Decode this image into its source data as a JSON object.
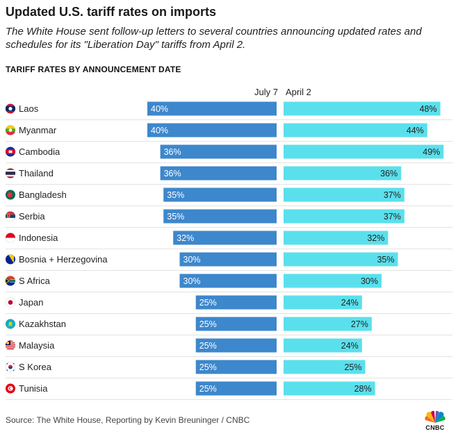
{
  "header": {
    "title": "Updated U.S. tariff rates on imports",
    "subtitle": "The White House sent follow-up letters to several countries announcing updated rates and schedules for its \"Liberation Day\" tariffs from April 2.",
    "section_label": "TARIFF RATES BY ANNOUNCEMENT DATE"
  },
  "footer": {
    "source": "Source: The White House, Reporting by Kevin Breuninger / CNBC",
    "logo": "CNBC"
  },
  "colors": {
    "july7_bar": "#3d87cc",
    "april2_bar": "#5ae0ec",
    "row_divider": "#e2e2e2"
  },
  "chart_data": {
    "type": "bar",
    "layout": "diverging-horizontal",
    "title": "TARIFF RATES BY ANNOUNCEMENT DATE",
    "categories": [
      "Laos",
      "Myanmar",
      "Cambodia",
      "Thailand",
      "Bangladesh",
      "Serbia",
      "Indonesia",
      "Bosnia + Herzegovina",
      "S Africa",
      "Japan",
      "Kazakhstan",
      "Malaysia",
      "S Korea",
      "Tunisia"
    ],
    "flags": [
      "laos",
      "myanmar",
      "cambodia",
      "thailand",
      "bangladesh",
      "serbia",
      "indonesia",
      "bosnia",
      "south-africa",
      "japan",
      "kazakhstan",
      "malaysia",
      "south-korea",
      "tunisia"
    ],
    "series": [
      {
        "name": "July 7",
        "values": [
          40,
          40,
          36,
          36,
          35,
          35,
          32,
          30,
          30,
          25,
          25,
          25,
          25,
          25
        ],
        "labels": [
          "40%",
          "40%",
          "36%",
          "36%",
          "35%",
          "35%",
          "32%",
          "30%",
          "30%",
          "25%",
          "25%",
          "25%",
          "25%",
          "25%"
        ],
        "direction": "left"
      },
      {
        "name": "April 2",
        "values": [
          48,
          44,
          49,
          36,
          37,
          37,
          32,
          35,
          30,
          24,
          27,
          24,
          25,
          28
        ],
        "labels": [
          "48%",
          "44%",
          "49%",
          "36%",
          "37%",
          "37%",
          "32%",
          "35%",
          "30%",
          "24%",
          "27%",
          "24%",
          "25%",
          "28%"
        ],
        "direction": "right"
      }
    ],
    "unit": "%",
    "xlim": [
      0,
      50
    ],
    "grid": false,
    "legend": "column headers above bars"
  }
}
